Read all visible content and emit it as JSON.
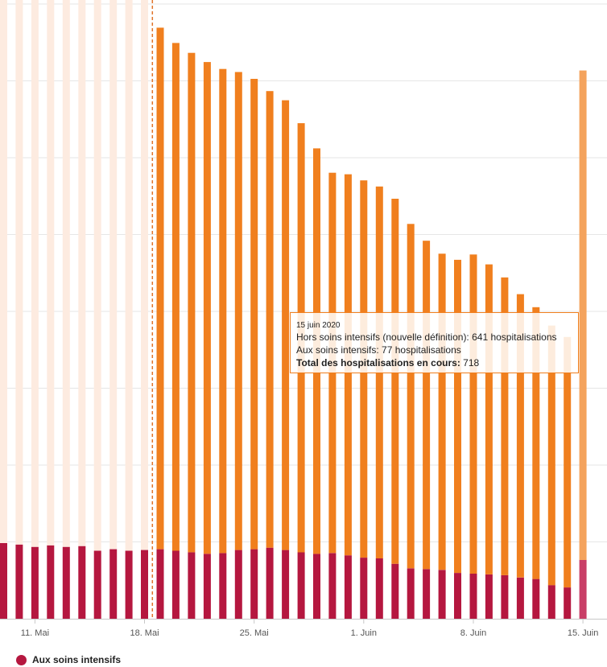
{
  "chart_data": {
    "type": "bar",
    "stacked": true,
    "x_tick_labels": [
      "11. Mai",
      "18. Mai",
      "25. Mai",
      "1. Juin",
      "8. Juin",
      "15. Juin"
    ],
    "categories": [
      "2020-05-09",
      "2020-05-10",
      "2020-05-11",
      "2020-05-12",
      "2020-05-13",
      "2020-05-14",
      "2020-05-15",
      "2020-05-16",
      "2020-05-17",
      "2020-05-18",
      "2020-05-19",
      "2020-05-20",
      "2020-05-21",
      "2020-05-22",
      "2020-05-23",
      "2020-05-24",
      "2020-05-25",
      "2020-05-26",
      "2020-05-27",
      "2020-05-28",
      "2020-05-29",
      "2020-05-30",
      "2020-05-31",
      "2020-06-01",
      "2020-06-02",
      "2020-06-03",
      "2020-06-04",
      "2020-06-05",
      "2020-06-06",
      "2020-06-07",
      "2020-06-08",
      "2020-06-09",
      "2020-06-10",
      "2020-06-11",
      "2020-06-12",
      "2020-06-13",
      "2020-06-14",
      "2020-06-15"
    ],
    "series": [
      {
        "name": "Aux soins intensifs",
        "color": "#b5173f",
        "values": [
          99,
          97,
          94,
          96,
          94,
          95,
          89,
          91,
          89,
          90,
          91,
          89,
          87,
          85,
          86,
          90,
          91,
          93,
          90,
          87,
          85,
          86,
          83,
          80,
          79,
          72,
          66,
          65,
          64,
          60,
          59,
          58,
          57,
          54,
          52,
          44,
          41,
          77
        ]
      },
      {
        "name": "Hors soins intensifs",
        "color": "#f07f1e",
        "values": [
          null,
          null,
          null,
          null,
          null,
          null,
          null,
          null,
          null,
          null,
          683,
          665,
          654,
          644,
          634,
          626,
          616,
          598,
          589,
          562,
          531,
          498,
          499,
          494,
          487,
          478,
          451,
          430,
          414,
          410,
          418,
          406,
          390,
          371,
          356,
          340,
          328,
          641
        ]
      }
    ],
    "shaded_period_end": "2020-05-18",
    "ylim": [
      0,
      805
    ],
    "grid": true,
    "legend_position": "bottom-left",
    "tooltip": {
      "date": "15 juin 2020",
      "line1": "Hors soins intensifs (nouvelle définition): 641 hospitalisations",
      "line2": "Aux soins intensifs: 77 hospitalisations",
      "total_label": "Total des hospitalisations en cours:",
      "total_value": "718"
    }
  },
  "legend": {
    "label": "Aux soins intensifs",
    "color": "#b5173f"
  }
}
